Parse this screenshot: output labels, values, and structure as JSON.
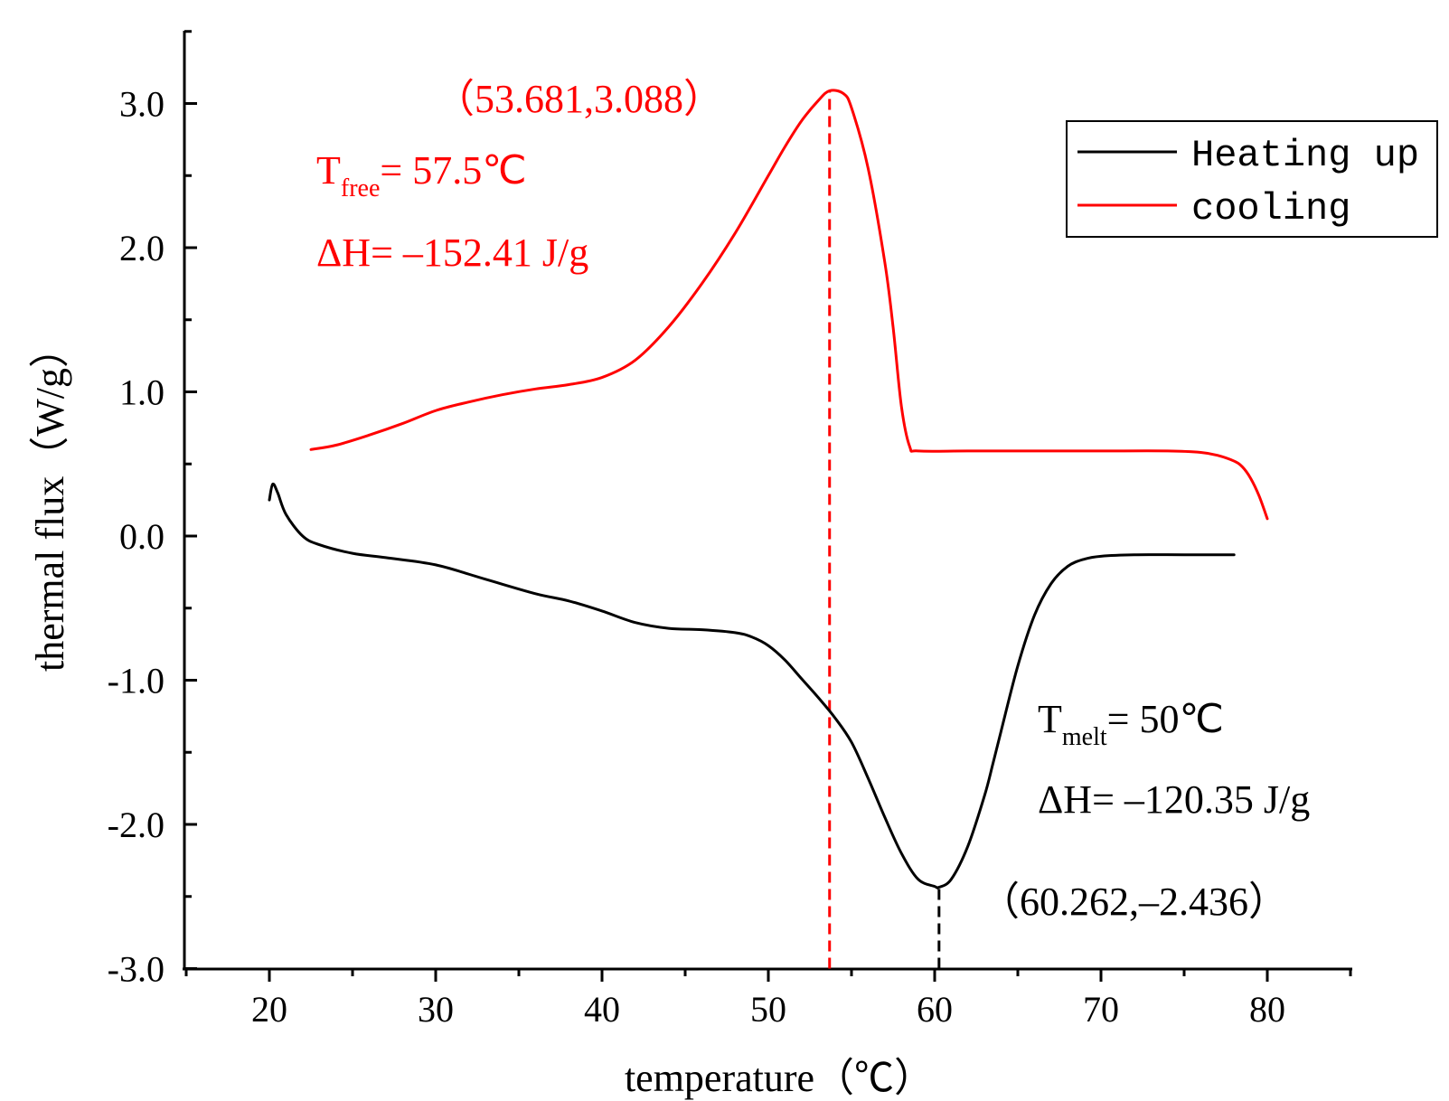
{
  "chart_data": {
    "type": "line",
    "title": "",
    "xlabel": "temperature（℃）",
    "ylabel": "thermal flux（W/g）",
    "xlim": [
      15,
      85
    ],
    "ylim": [
      -3.0,
      3.5
    ],
    "x_ticks": [
      20,
      30,
      40,
      50,
      60,
      70,
      80
    ],
    "x_tick_labels": [
      "20",
      "30",
      "40",
      "50",
      "60",
      "70",
      "80"
    ],
    "y_ticks": [
      3.0,
      2.0,
      1.0,
      0.0,
      -1.0,
      -2.0,
      -3.0
    ],
    "y_tick_labels": [
      "3.0",
      "2.0",
      "1.0",
      "0.0",
      "-1.0",
      "-2.0",
      "-3.0"
    ],
    "grid": false,
    "legend_position": "top-right",
    "colors": {
      "heating": "#000000",
      "cooling": "#ff0000"
    },
    "series": [
      {
        "name": "Heating up",
        "color": "#000000",
        "x": [
          20.0,
          20.2,
          20.5,
          21,
          22,
          23,
          25,
          27,
          30,
          33,
          36,
          38,
          40,
          42,
          44,
          46,
          48,
          49,
          50,
          51,
          52,
          53,
          54,
          55,
          56,
          57,
          58,
          59,
          60,
          60.262,
          61,
          62,
          63,
          63.5,
          64,
          65,
          66,
          67,
          68,
          69,
          70,
          72,
          75,
          78
        ],
        "y": [
          0.25,
          0.36,
          0.3,
          0.15,
          0.0,
          -0.06,
          -0.12,
          -0.15,
          -0.2,
          -0.3,
          -0.4,
          -0.45,
          -0.52,
          -0.6,
          -0.64,
          -0.65,
          -0.67,
          -0.7,
          -0.76,
          -0.86,
          -0.99,
          -1.12,
          -1.26,
          -1.43,
          -1.68,
          -1.95,
          -2.2,
          -2.38,
          -2.43,
          -2.436,
          -2.38,
          -2.15,
          -1.8,
          -1.58,
          -1.35,
          -0.9,
          -0.55,
          -0.33,
          -0.21,
          -0.16,
          -0.14,
          -0.13,
          -0.13,
          -0.13
        ]
      },
      {
        "name": "cooling",
        "color": "#ff0000",
        "x": [
          22.5,
          24,
          26,
          28,
          30,
          32,
          34,
          36,
          38,
          40,
          42,
          44,
          46,
          48,
          50,
          51,
          52,
          53,
          53.681,
          54.5,
          55,
          56,
          57,
          57.5,
          58,
          58.5,
          59,
          62,
          66,
          70,
          74,
          76,
          77,
          78,
          78.5,
          79,
          79.5,
          80
        ],
        "y": [
          0.6,
          0.63,
          0.7,
          0.78,
          0.87,
          0.93,
          0.98,
          1.02,
          1.05,
          1.1,
          1.22,
          1.45,
          1.75,
          2.1,
          2.5,
          2.7,
          2.88,
          3.02,
          3.088,
          3.07,
          2.97,
          2.55,
          1.9,
          1.45,
          0.9,
          0.62,
          0.59,
          0.59,
          0.59,
          0.59,
          0.59,
          0.58,
          0.56,
          0.52,
          0.48,
          0.4,
          0.28,
          0.12
        ]
      }
    ],
    "guides": [
      {
        "name": "cooling-peak-guide",
        "x": 53.681,
        "y_from": -3.0,
        "y_to": 3.088,
        "color": "#ff0000"
      },
      {
        "name": "heating-valley-guide",
        "x": 60.262,
        "y_from": -3.0,
        "y_to": -2.436,
        "color": "#000000"
      }
    ],
    "annotations": {
      "cooling_peak": "（53.681,3.088）",
      "t_free_main": "T",
      "t_free_sub": "free",
      "t_free_rest": "= 57.5℃",
      "dh_cooling": "ΔH= –152.41 J/g",
      "t_melt_main": "T",
      "t_melt_sub": "melt",
      "t_melt_rest": "= 50℃",
      "dh_heating": "ΔH= –120.35 J/g",
      "heating_valley": "（60.262,–2.436）"
    },
    "legend": [
      {
        "label": "Heating up",
        "color": "#000000"
      },
      {
        "label": "cooling",
        "color": "#ff0000"
      }
    ]
  }
}
